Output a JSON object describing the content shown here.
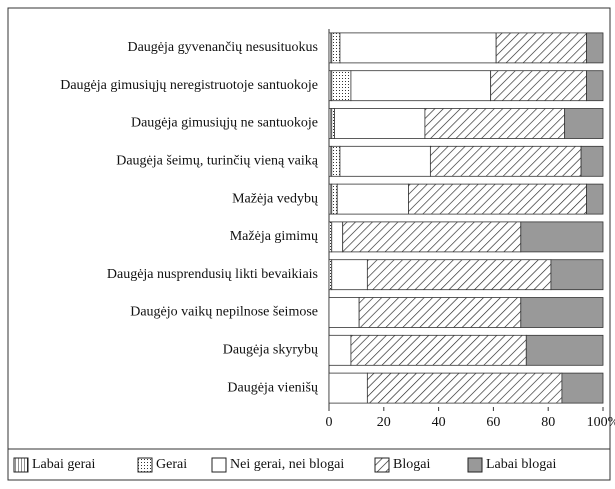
{
  "chart_data": {
    "type": "stacked-barh",
    "categories": [
      "Daugėja gyvenančių nesusituokus",
      "Daugėja gimusiųjų neregistruotoje santuokoje",
      "Daugėja gimusiųjų ne santuokoje",
      "Daugėja šeimų, turinčių vieną vaiką",
      "Mažėja vedybų",
      "Mažėja gimimų",
      "Daugėja nusprendusių likti bevaikiais",
      "Daugėjo vaikų nepilnose šeimose",
      "Daugėja skyrybų",
      "Daugėja vienišų"
    ],
    "series": [
      {
        "name": "Labai gerai",
        "color": "#ffffff",
        "pattern": "grid",
        "values": [
          1,
          1,
          1,
          1,
          1,
          0,
          0,
          0,
          0,
          0
        ]
      },
      {
        "name": "Gerai",
        "color": "#ffffff",
        "pattern": "dots",
        "values": [
          3,
          7,
          1,
          3,
          2,
          1,
          1,
          0,
          0,
          0
        ]
      },
      {
        "name": "Nei gerai, nei blogai",
        "color": "#ffffff",
        "pattern": "none",
        "values": [
          57,
          51,
          33,
          33,
          26,
          4,
          13,
          11,
          8,
          14
        ]
      },
      {
        "name": "Blogai",
        "color": "#ffffff",
        "pattern": "diagonal",
        "values": [
          33,
          35,
          51,
          55,
          65,
          65,
          67,
          59,
          64,
          71
        ]
      },
      {
        "name": "Labai blogai",
        "color": "#999999",
        "pattern": "none",
        "values": [
          6,
          6,
          14,
          8,
          6,
          30,
          19,
          30,
          28,
          15
        ]
      }
    ],
    "xlim": [
      0,
      100
    ],
    "xticks": [
      0,
      20,
      40,
      60,
      80,
      {
        "value": 100,
        "label": "100%"
      }
    ]
  }
}
